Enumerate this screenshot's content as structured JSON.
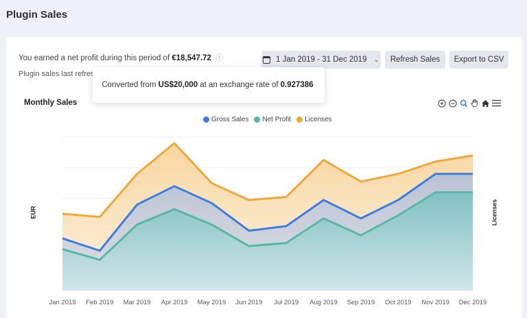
{
  "page": {
    "title": "Plugin Sales"
  },
  "summary": {
    "profit_prefix": "You earned a net profit during this period of",
    "profit_value": "€18,547.72",
    "info_icon": "info-icon",
    "sub_text": "Plugin sales last refres"
  },
  "toolbar": {
    "date_range": "1 Jan 2019 - 31 Dec 2019",
    "refresh_label": "Refresh Sales",
    "export_label": "Export to CSV"
  },
  "tooltip": {
    "prefix": "Converted from",
    "amount": "US$20,000",
    "middle": "at an exchange rate of",
    "rate": "0.927386"
  },
  "chart_controls": [
    "zoom-in-icon",
    "zoom-out-icon",
    "search-icon",
    "pan-hand-icon",
    "home-icon",
    "menu-icon"
  ],
  "chart_data": {
    "type": "area",
    "title": "Monthly Sales",
    "xlabel": "",
    "ylabel": "EUR",
    "y2label": "Licenses",
    "categories": [
      "Jan 2019",
      "Feb 2019",
      "Mar 2019",
      "Apr 2019",
      "May 2019",
      "Jun 2019",
      "Jul 2019",
      "Aug 2019",
      "Sep 2019",
      "Oct 2019",
      "Nov 2019",
      "Dec 2019"
    ],
    "ylim": [
      0,
      100
    ],
    "y2lim": [
      0,
      100
    ],
    "grid": true,
    "legend": "top-center",
    "series": [
      {
        "name": "Gross Sales",
        "color": "#3b7de0",
        "values": [
          34,
          26,
          56,
          68,
          57,
          39,
          42,
          59,
          47,
          59,
          76,
          76
        ]
      },
      {
        "name": "Net Profit",
        "color": "#54b8a3",
        "values": [
          27,
          20,
          43,
          53,
          43,
          29,
          31,
          47,
          36,
          49,
          64,
          64
        ]
      },
      {
        "name": "Licenses",
        "color": "#f0a83a",
        "axis": "right",
        "values": [
          50,
          48,
          76,
          96,
          70,
          59,
          61,
          85,
          71,
          76,
          84,
          88
        ]
      }
    ]
  }
}
